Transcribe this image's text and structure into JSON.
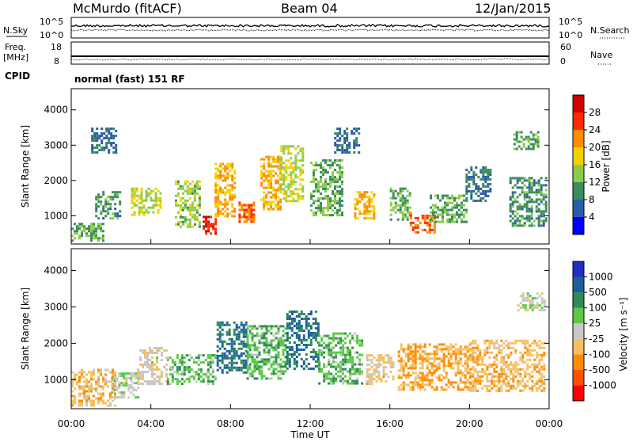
{
  "header": {
    "station": "McMurdo (fitACF)",
    "beam": "Beam 04",
    "date": "12/Jan/2015"
  },
  "noise_panel": {
    "left_label": "N.Sky",
    "right_label": "N.Search",
    "y_top": "10^5",
    "y_bottom": "10^0"
  },
  "freq_panel": {
    "left_label_1": "Freq.",
    "left_label_2": "[MHz]",
    "left_ticks": [
      "18",
      "8"
    ],
    "right_label": "Nave",
    "right_ticks": [
      "60",
      "0"
    ]
  },
  "cpid": {
    "label": "CPID",
    "value": "normal (fast) 151 RF"
  },
  "chart_data": [
    {
      "type": "heatmap",
      "name": "Power",
      "ylabel": "Slant Range [km]",
      "xlabel": "",
      "yticks": [
        "4000",
        "3000",
        "2000",
        "1000"
      ],
      "ylim": [
        200,
        4600
      ],
      "colorbar_label": "Power [dB]",
      "colorbar_ticks": [
        "28",
        "24",
        "20",
        "16",
        "12",
        "8",
        "4"
      ],
      "colors": [
        "#0000ff",
        "#2b5caa",
        "#3a8c5c",
        "#8ccc4a",
        "#f2d100",
        "#ff8c00",
        "#ff2a00",
        "#cc0000"
      ],
      "color_min": 0,
      "color_max": 32,
      "regions": [
        {
          "t": [
            0.0,
            1.6
          ],
          "r": [
            300,
            800
          ],
          "v": 12
        },
        {
          "t": [
            1.2,
            2.4
          ],
          "r": [
            900,
            1700
          ],
          "v": 10
        },
        {
          "t": [
            1.0,
            2.2
          ],
          "r": [
            2800,
            3500
          ],
          "v": 8
        },
        {
          "t": [
            3.0,
            4.5
          ],
          "r": [
            1000,
            1800
          ],
          "v": 16
        },
        {
          "t": [
            5.2,
            6.4
          ],
          "r": [
            700,
            2000
          ],
          "v": 14
        },
        {
          "t": [
            6.6,
            7.3
          ],
          "r": [
            500,
            1000
          ],
          "v": 28
        },
        {
          "t": [
            7.2,
            8.2
          ],
          "r": [
            1000,
            2500
          ],
          "v": 20
        },
        {
          "t": [
            8.4,
            9.2
          ],
          "r": [
            800,
            1400
          ],
          "v": 24
        },
        {
          "t": [
            9.5,
            10.5
          ],
          "r": [
            1200,
            2700
          ],
          "v": 20
        },
        {
          "t": [
            10.5,
            11.6
          ],
          "r": [
            1400,
            3000
          ],
          "v": 16
        },
        {
          "t": [
            12.0,
            13.6
          ],
          "r": [
            1000,
            2600
          ],
          "v": 12
        },
        {
          "t": [
            13.2,
            14.4
          ],
          "r": [
            2800,
            3500
          ],
          "v": 8
        },
        {
          "t": [
            14.2,
            15.2
          ],
          "r": [
            900,
            1700
          ],
          "v": 20
        },
        {
          "t": [
            16.0,
            17.0
          ],
          "r": [
            900,
            1800
          ],
          "v": 12
        },
        {
          "t": [
            17.0,
            18.2
          ],
          "r": [
            500,
            1100
          ],
          "v": 24
        },
        {
          "t": [
            18.0,
            19.8
          ],
          "r": [
            800,
            1600
          ],
          "v": 12
        },
        {
          "t": [
            19.8,
            21.0
          ],
          "r": [
            1400,
            2400
          ],
          "v": 8
        },
        {
          "t": [
            22.0,
            23.8
          ],
          "r": [
            700,
            2100
          ],
          "v": 10
        },
        {
          "t": [
            22.2,
            23.5
          ],
          "r": [
            2900,
            3400
          ],
          "v": 12
        }
      ]
    },
    {
      "type": "heatmap",
      "name": "Velocity",
      "ylabel": "Slant Range [km]",
      "xlabel": "Time UT",
      "yticks": [
        "4000",
        "3000",
        "2000",
        "1000"
      ],
      "ylim": [
        200,
        4600
      ],
      "xticks": [
        "00:00",
        "04:00",
        "08:00",
        "12:00",
        "16:00",
        "20:00",
        "00:00"
      ],
      "xlim": [
        0,
        24
      ],
      "colorbar_label": "Velocity [m s⁻¹]",
      "colorbar_ticks": [
        "1000",
        "500",
        "100",
        "25",
        "-25",
        "-100",
        "-500",
        "-1000"
      ],
      "colors": [
        "#ff0000",
        "#ff5000",
        "#ff8c00",
        "#f5c060",
        "#c8c8c8",
        "#5cc844",
        "#2e8b57",
        "#1b5fa0",
        "#1f2fbf"
      ],
      "color_min": -1200,
      "color_max": 1200,
      "regions": [
        {
          "t": [
            0.0,
            2.2
          ],
          "r": [
            300,
            1300
          ],
          "v": -300
        },
        {
          "t": [
            2.0,
            3.4
          ],
          "r": [
            500,
            1200
          ],
          "v": 60
        },
        {
          "t": [
            3.3,
            4.8
          ],
          "r": [
            900,
            1900
          ],
          "v": -60
        },
        {
          "t": [
            4.8,
            7.2
          ],
          "r": [
            900,
            1700
          ],
          "v": 300
        },
        {
          "t": [
            7.3,
            8.8
          ],
          "r": [
            1200,
            2600
          ],
          "v": 700
        },
        {
          "t": [
            8.8,
            10.8
          ],
          "r": [
            1000,
            2500
          ],
          "v": 300
        },
        {
          "t": [
            10.8,
            12.4
          ],
          "r": [
            1300,
            2900
          ],
          "v": 700
        },
        {
          "t": [
            12.4,
            14.6
          ],
          "r": [
            900,
            2300
          ],
          "v": 300
        },
        {
          "t": [
            14.8,
            16.2
          ],
          "r": [
            900,
            1700
          ],
          "v": -200
        },
        {
          "t": [
            16.4,
            20.0
          ],
          "r": [
            700,
            2000
          ],
          "v": -400
        },
        {
          "t": [
            20.0,
            23.8
          ],
          "r": [
            700,
            2100
          ],
          "v": -300
        },
        {
          "t": [
            22.4,
            23.8
          ],
          "r": [
            2900,
            3400
          ],
          "v": 10
        }
      ]
    }
  ]
}
